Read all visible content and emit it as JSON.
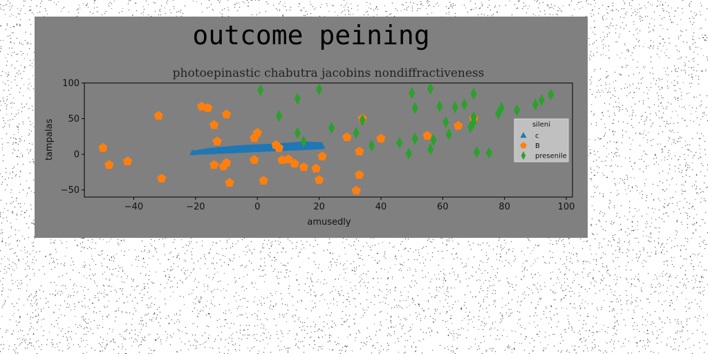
{
  "chart_data": {
    "type": "scatter",
    "title": "outcome peining",
    "subtitle": "photoepinastic chabutra jacobins nondiffractiveness",
    "xlabel": "amusedly",
    "ylabel": "tampalas",
    "xlim": [
      -56,
      102
    ],
    "ylim": [
      -60,
      100
    ],
    "xticks": [
      -40,
      -20,
      0,
      20,
      40,
      60,
      80,
      100
    ],
    "yticks": [
      -50,
      0,
      50,
      100
    ],
    "legend": {
      "title": "sileni",
      "position": "center-right"
    },
    "colors": {
      "panel": "#808080",
      "legend_bg": "#c0c0c0"
    },
    "series": [
      {
        "name": "c",
        "marker": "triangle",
        "color": "#1f77b4",
        "band": {
          "upper": [
            [
              -21,
              5
            ],
            [
              -15,
              9
            ],
            [
              -5,
              13
            ],
            [
              5,
              15
            ],
            [
              15,
              18
            ],
            [
              21,
              17
            ]
          ],
          "lower": [
            [
              21,
              7
            ],
            [
              10,
              5
            ],
            [
              0,
              3
            ],
            [
              -10,
              1
            ],
            [
              -21,
              -1
            ]
          ]
        },
        "points": [
          [
            -21,
            2
          ],
          [
            -17,
            4
          ],
          [
            -13,
            6
          ],
          [
            -9,
            7
          ],
          [
            -5,
            8
          ],
          [
            -1,
            9
          ],
          [
            3,
            10
          ],
          [
            7,
            11
          ],
          [
            11,
            12
          ],
          [
            15,
            12
          ],
          [
            19,
            12
          ],
          [
            21,
            11
          ]
        ]
      },
      {
        "name": "B",
        "marker": "pentagon",
        "color": "#ff7f0e",
        "points": [
          [
            -50,
            9
          ],
          [
            -48,
            -15
          ],
          [
            -42,
            -10
          ],
          [
            -32,
            54
          ],
          [
            -31,
            -34
          ],
          [
            -18,
            67
          ],
          [
            -16,
            65
          ],
          [
            -14,
            41
          ],
          [
            -13,
            18
          ],
          [
            -14,
            -15
          ],
          [
            -10,
            -12
          ],
          [
            -11,
            -17
          ],
          [
            -10,
            56
          ],
          [
            -9,
            -40
          ],
          [
            -1,
            -8
          ],
          [
            -1,
            23
          ],
          [
            0,
            30
          ],
          [
            2,
            -37
          ],
          [
            6,
            13
          ],
          [
            7,
            9
          ],
          [
            8,
            -8
          ],
          [
            10,
            -7
          ],
          [
            12,
            -13
          ],
          [
            15,
            -18
          ],
          [
            19,
            -20
          ],
          [
            20,
            -36
          ],
          [
            21,
            -3
          ],
          [
            29,
            24
          ],
          [
            32,
            -51
          ],
          [
            33,
            -29
          ],
          [
            33,
            4
          ],
          [
            34,
            50
          ],
          [
            40,
            22
          ],
          [
            55,
            26
          ],
          [
            65,
            40
          ],
          [
            70,
            50
          ]
        ]
      },
      {
        "name": "presenile",
        "marker": "diamond",
        "color": "#2ca02c",
        "points": [
          [
            1,
            90
          ],
          [
            7,
            54
          ],
          [
            13,
            78
          ],
          [
            13,
            30
          ],
          [
            15,
            18
          ],
          [
            20,
            91
          ],
          [
            24,
            37
          ],
          [
            32,
            30
          ],
          [
            34,
            48
          ],
          [
            37,
            12
          ],
          [
            46,
            16
          ],
          [
            49,
            1
          ],
          [
            50,
            86
          ],
          [
            51,
            65
          ],
          [
            51,
            22
          ],
          [
            56,
            92
          ],
          [
            56,
            7
          ],
          [
            57,
            20
          ],
          [
            59,
            67
          ],
          [
            61,
            45
          ],
          [
            62,
            28
          ],
          [
            64,
            66
          ],
          [
            67,
            70
          ],
          [
            69,
            38
          ],
          [
            70,
            85
          ],
          [
            71,
            3
          ],
          [
            70,
            52
          ],
          [
            70,
            45
          ],
          [
            75,
            2
          ],
          [
            78,
            57
          ],
          [
            79,
            65
          ],
          [
            84,
            62
          ],
          [
            90,
            70
          ],
          [
            92,
            76
          ],
          [
            95,
            84
          ]
        ]
      }
    ]
  }
}
